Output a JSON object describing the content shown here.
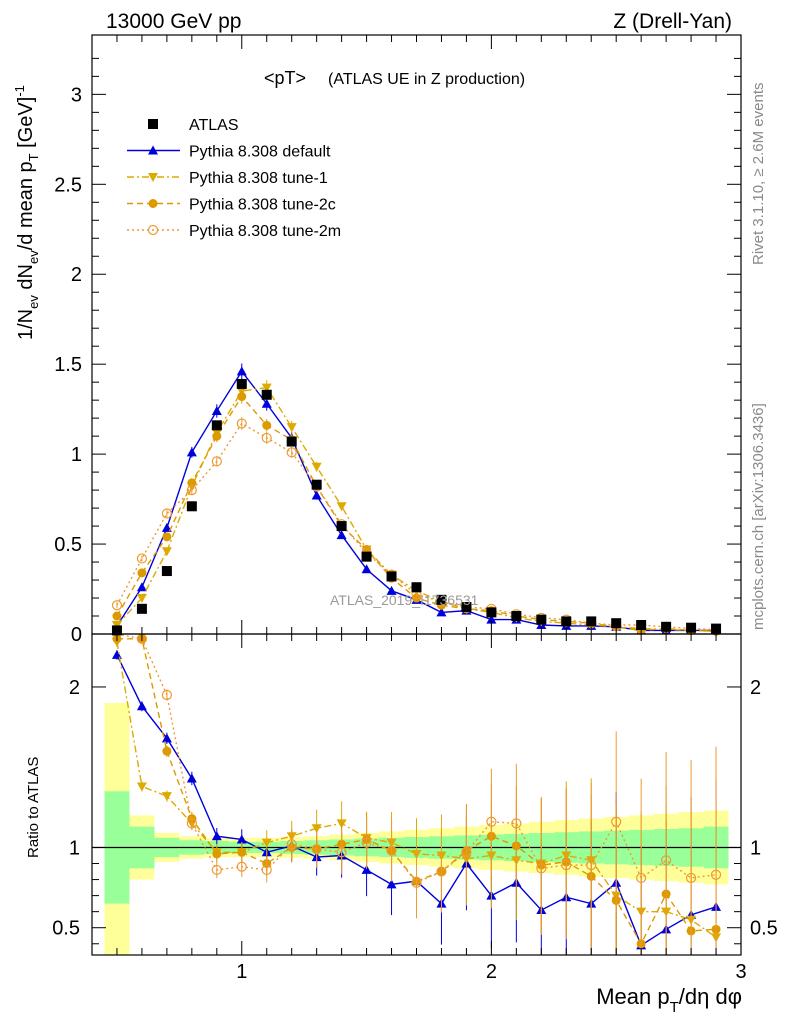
{
  "header": {
    "left": "13000 GeV pp",
    "right": "Z (Drell-Yan)"
  },
  "side_labels": {
    "rivet": "Rivet 3.1.10, ≥ 2.6M events",
    "mcplots": "mcplots.cern.ch [arXiv:1306.3436]"
  },
  "watermark": "ATLAS_2019_I1736531",
  "chart_data": {
    "type": "scatter",
    "title_main": "<pT>",
    "title_sub": "(ATLAS UE in Z production)",
    "ylabel_top_parts": [
      "1/N",
      "ev",
      " dN",
      "ev",
      "/d mean p",
      "T",
      " [GeV]",
      "-1"
    ],
    "ylabel_bottom": "Ratio to ATLAS",
    "xlabel_parts": [
      "Mean p",
      "T",
      "/dη dφ"
    ],
    "xlim": [
      0.4,
      3.0
    ],
    "ylim_top": [
      0,
      3.33
    ],
    "ylim_bottom": [
      0.33,
      2.33
    ],
    "yticks_top": [
      0,
      0.5,
      1,
      1.5,
      2,
      2.5,
      3
    ],
    "yticks_bottom": [
      0.5,
      1,
      2
    ],
    "xticks": [
      1,
      2,
      3
    ],
    "x": [
      0.5,
      0.6,
      0.7,
      0.8,
      0.9,
      1.0,
      1.1,
      1.2,
      1.3,
      1.4,
      1.5,
      1.6,
      1.7,
      1.8,
      1.9,
      2.0,
      2.1,
      2.2,
      2.3,
      2.4,
      2.5,
      2.6,
      2.7,
      2.8,
      2.9
    ],
    "reference": {
      "name": "ATLAS",
      "color": "#000000",
      "values": [
        0.02,
        0.14,
        0.35,
        0.71,
        1.16,
        1.39,
        1.33,
        1.07,
        0.83,
        0.6,
        0.43,
        0.32,
        0.26,
        0.19,
        0.15,
        0.12,
        0.1,
        0.08,
        0.07,
        0.07,
        0.06,
        0.05,
        0.04,
        0.035,
        0.03
      ],
      "band_inner": [
        0.35,
        0.13,
        0.06,
        0.045,
        0.04,
        0.035,
        0.035,
        0.04,
        0.045,
        0.05,
        0.055,
        0.06,
        0.065,
        0.07,
        0.075,
        0.08,
        0.085,
        0.09,
        0.095,
        0.1,
        0.105,
        0.11,
        0.115,
        0.12,
        0.13
      ],
      "band_outer": [
        0.9,
        0.2,
        0.09,
        0.07,
        0.06,
        0.06,
        0.06,
        0.065,
        0.07,
        0.08,
        0.09,
        0.1,
        0.11,
        0.12,
        0.13,
        0.14,
        0.15,
        0.16,
        0.17,
        0.18,
        0.19,
        0.2,
        0.21,
        0.22,
        0.23
      ]
    },
    "series": [
      {
        "name": "Pythia 8.308 default",
        "color": "#0000dd",
        "marker": "triangle-up",
        "line": "solid",
        "values": [
          0.045,
          0.26,
          0.59,
          1.01,
          1.24,
          1.46,
          1.28,
          1.09,
          0.77,
          0.55,
          0.36,
          0.24,
          0.19,
          0.12,
          0.13,
          0.08,
          0.08,
          0.05,
          0.045,
          0.045,
          0.04,
          0.02,
          0.02,
          0.02,
          0.02
        ],
        "ratio": [
          2.2,
          1.88,
          1.68,
          1.43,
          1.07,
          1.05,
          0.97,
          1.01,
          0.94,
          0.95,
          0.86,
          0.77,
          0.79,
          0.65,
          0.9,
          0.7,
          0.78,
          0.61,
          0.69,
          0.65,
          0.78,
          0.39,
          0.49,
          0.58,
          0.63
        ]
      },
      {
        "name": "Pythia 8.308 tune-1",
        "color": "#ddaa00",
        "marker": "triangle-down",
        "line": "dashdot",
        "values": [
          0.05,
          0.2,
          0.46,
          0.82,
          1.12,
          1.35,
          1.37,
          1.15,
          0.93,
          0.71,
          0.47,
          0.33,
          0.24,
          0.18,
          0.14,
          0.12,
          0.09,
          0.07,
          0.06,
          0.05,
          0.04,
          0.03,
          0.025,
          0.02,
          0.015
        ],
        "ratio": [
          2.28,
          1.38,
          1.32,
          1.15,
          0.97,
          0.97,
          1.03,
          1.07,
          1.12,
          1.15,
          1.06,
          1.03,
          0.96,
          0.95,
          0.93,
          0.95,
          0.92,
          0.9,
          0.95,
          0.92,
          0.7,
          0.6,
          0.6,
          0.55,
          0.44
        ]
      },
      {
        "name": "Pythia 8.308 tune-2c",
        "color": "#dd9900",
        "marker": "circle",
        "line": "dashed",
        "values": [
          0.1,
          0.34,
          0.54,
          0.84,
          1.1,
          1.32,
          1.16,
          1.08,
          0.82,
          0.6,
          0.47,
          0.31,
          0.2,
          0.16,
          0.14,
          0.13,
          0.1,
          0.08,
          0.07,
          0.06,
          0.04,
          0.02,
          0.03,
          0.02,
          0.015
        ],
        "ratio": [
          2.3,
          2.3,
          1.6,
          1.18,
          0.96,
          0.97,
          0.9,
          1.0,
          0.99,
          1.02,
          1.05,
          0.98,
          0.79,
          0.85,
          0.98,
          1.07,
          1.01,
          0.89,
          0.91,
          0.82,
          0.67,
          0.4,
          0.71,
          0.48,
          0.49
        ]
      },
      {
        "name": "Pythia 8.308 tune-2m",
        "color": "#ee9933",
        "marker": "circle-open",
        "line": "dotted",
        "values": [
          0.16,
          0.42,
          0.67,
          0.8,
          0.96,
          1.17,
          1.09,
          1.01,
          0.82,
          0.61,
          0.45,
          0.33,
          0.22,
          0.18,
          0.15,
          0.14,
          0.11,
          0.09,
          0.08,
          0.06,
          0.05,
          0.05,
          0.04,
          0.03,
          0.025
        ],
        "ratio": [
          2.4,
          2.3,
          1.95,
          1.15,
          0.86,
          0.88,
          0.86,
          1.02,
          0.99,
          0.97,
          1.03,
          0.98,
          0.78,
          0.85,
          0.97,
          1.16,
          1.15,
          0.87,
          0.89,
          0.89,
          1.16,
          0.81,
          0.92,
          0.81,
          0.83
        ]
      }
    ]
  }
}
